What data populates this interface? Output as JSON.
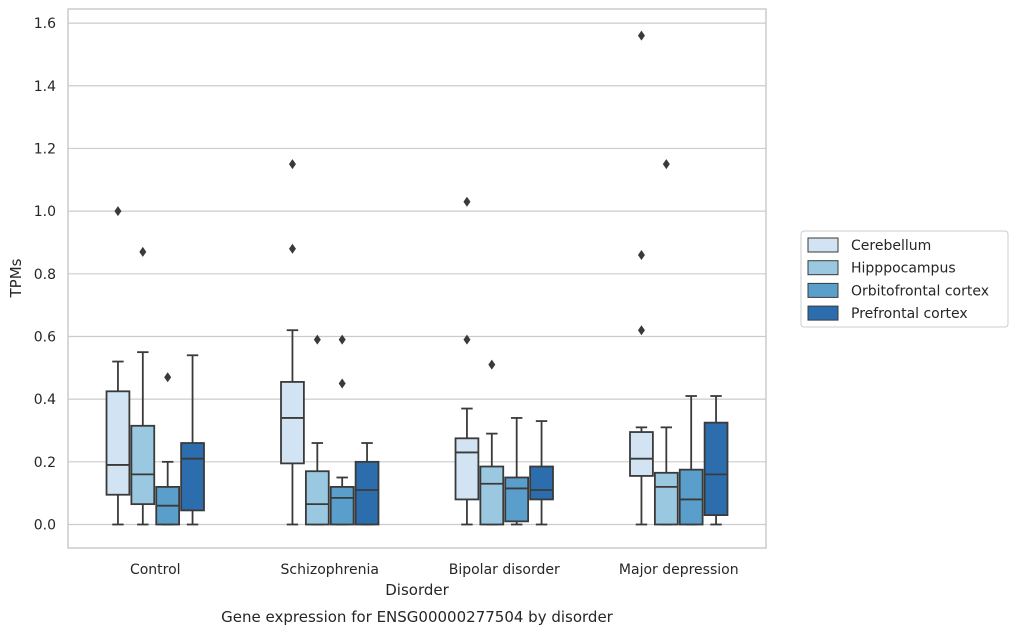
{
  "chart_data": {
    "type": "box",
    "caption": "Gene expression for ENSG00000277504 by disorder",
    "xlabel": "Disorder",
    "ylabel": "TPMs",
    "ylim": [
      -0.075,
      1.645
    ],
    "yticks": [
      0.0,
      0.2,
      0.4,
      0.6,
      0.8,
      1.0,
      1.2,
      1.4,
      1.6
    ],
    "ytick_labels": [
      "0.0",
      "0.2",
      "0.4",
      "0.6",
      "0.8",
      "1.0",
      "1.2",
      "1.4",
      "1.6"
    ],
    "grid": "horizontal",
    "legend_position": "right",
    "categories": [
      "Control",
      "Schizophrenia",
      "Bipolar disorder",
      "Major depression"
    ],
    "series": [
      {
        "name": "Cerebellum",
        "color": "#d2e3f3",
        "boxes": [
          {
            "whislo": 0.0,
            "q1": 0.095,
            "med": 0.19,
            "q3": 0.425,
            "whishi": 0.52,
            "fliers": [
              1.0
            ]
          },
          {
            "whislo": 0.0,
            "q1": 0.195,
            "med": 0.34,
            "q3": 0.455,
            "whishi": 0.62,
            "fliers": [
              0.88,
              1.15
            ]
          },
          {
            "whislo": 0.0,
            "q1": 0.08,
            "med": 0.23,
            "q3": 0.275,
            "whishi": 0.37,
            "fliers": [
              0.59,
              1.03
            ]
          },
          {
            "whislo": 0.0,
            "q1": 0.155,
            "med": 0.21,
            "q3": 0.295,
            "whishi": 0.31,
            "fliers": [
              0.62,
              0.86,
              1.56
            ]
          }
        ]
      },
      {
        "name": "Hipppocampus",
        "color": "#9ac8e0",
        "boxes": [
          {
            "whislo": 0.0,
            "q1": 0.065,
            "med": 0.16,
            "q3": 0.315,
            "whishi": 0.55,
            "fliers": [
              0.87
            ]
          },
          {
            "whislo": 0.0,
            "q1": 0.0,
            "med": 0.065,
            "q3": 0.17,
            "whishi": 0.26,
            "fliers": [
              0.59
            ]
          },
          {
            "whislo": 0.0,
            "q1": 0.0,
            "med": 0.13,
            "q3": 0.185,
            "whishi": 0.29,
            "fliers": [
              0.51
            ]
          },
          {
            "whislo": 0.0,
            "q1": 0.0,
            "med": 0.12,
            "q3": 0.165,
            "whishi": 0.31,
            "fliers": [
              1.15
            ]
          }
        ]
      },
      {
        "name": "Orbitofrontal cortex",
        "color": "#5a9ecc",
        "boxes": [
          {
            "whislo": 0.0,
            "q1": 0.0,
            "med": 0.06,
            "q3": 0.12,
            "whishi": 0.2,
            "fliers": [
              0.47
            ]
          },
          {
            "whislo": 0.0,
            "q1": 0.0,
            "med": 0.085,
            "q3": 0.12,
            "whishi": 0.15,
            "fliers": [
              0.45,
              0.59
            ]
          },
          {
            "whislo": 0.0,
            "q1": 0.01,
            "med": 0.115,
            "q3": 0.15,
            "whishi": 0.34,
            "fliers": []
          },
          {
            "whislo": 0.0,
            "q1": 0.0,
            "med": 0.08,
            "q3": 0.175,
            "whishi": 0.41,
            "fliers": []
          }
        ]
      },
      {
        "name": "Prefrontal cortex",
        "color": "#2c6dad",
        "boxes": [
          {
            "whislo": 0.0,
            "q1": 0.045,
            "med": 0.21,
            "q3": 0.26,
            "whishi": 0.54,
            "fliers": []
          },
          {
            "whislo": 0.0,
            "q1": 0.0,
            "med": 0.11,
            "q3": 0.2,
            "whishi": 0.26,
            "fliers": []
          },
          {
            "whislo": 0.0,
            "q1": 0.08,
            "med": 0.11,
            "q3": 0.185,
            "whishi": 0.33,
            "fliers": []
          },
          {
            "whislo": 0.0,
            "q1": 0.03,
            "med": 0.16,
            "q3": 0.325,
            "whishi": 0.41,
            "fliers": []
          }
        ]
      }
    ]
  }
}
